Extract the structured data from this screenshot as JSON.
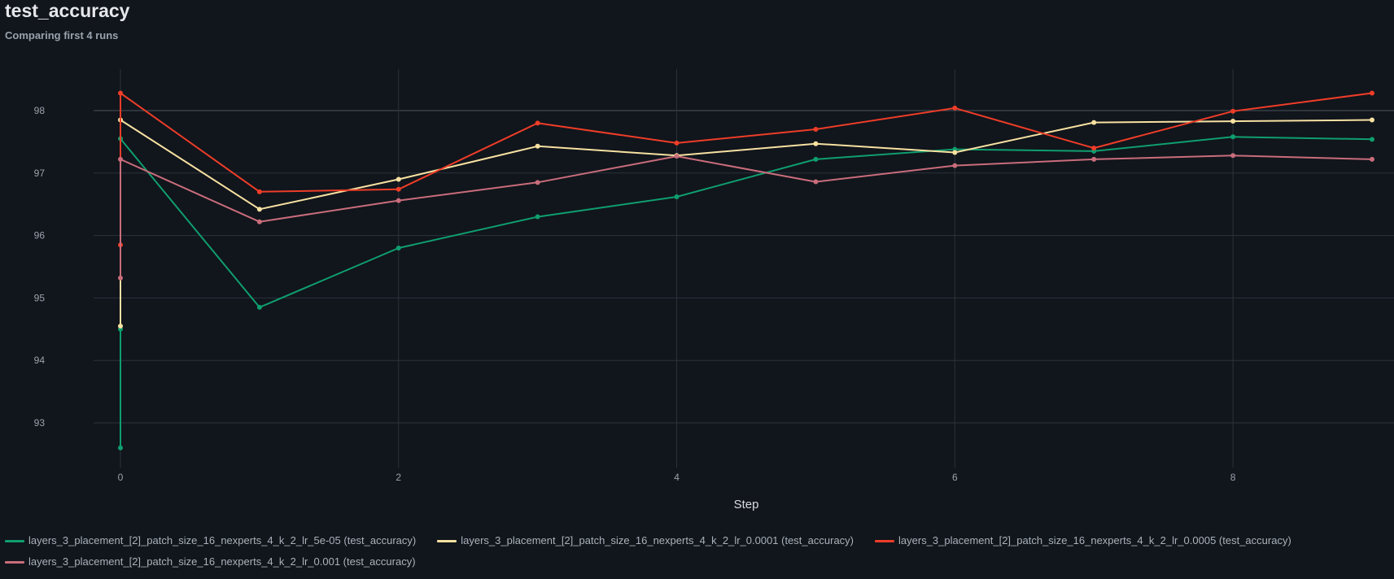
{
  "header": {
    "title": "test_accuracy",
    "subtitle": "Comparing first 4 runs"
  },
  "chart_data": {
    "type": "line",
    "xlabel": "Step",
    "ylabel": "",
    "xlim": [
      -0.3,
      9
    ],
    "ylim": [
      92.3,
      98.65
    ],
    "xticks": [
      0,
      2,
      4,
      6,
      8
    ],
    "yticks": [
      93,
      94,
      95,
      96,
      97,
      98
    ],
    "grid": true,
    "legend_position": "bottom",
    "series": [
      {
        "name": "layers_3_placement_[2]_patch_size_16_nexperts_4_k_2_lr_5e-05 (test_accuracy)",
        "color": "#0f9e6e",
        "x": [
          0,
          0,
          0,
          1,
          2,
          3,
          4,
          5,
          6,
          7,
          8,
          9
        ],
        "y": [
          92.6,
          94.5,
          97.55,
          94.85,
          95.8,
          96.3,
          96.62,
          97.22,
          97.38,
          97.35,
          97.58,
          97.54
        ]
      },
      {
        "name": "layers_3_placement_[2]_patch_size_16_nexperts_4_k_2_lr_0.0001 (test_accuracy)",
        "color": "#f7e1a1",
        "x": [
          0,
          0,
          1,
          2,
          3,
          4,
          5,
          6,
          7,
          8,
          9
        ],
        "y": [
          94.55,
          97.85,
          96.42,
          96.9,
          97.43,
          97.28,
          97.47,
          97.33,
          97.81,
          97.83,
          97.85
        ]
      },
      {
        "name": "layers_3_placement_[2]_patch_size_16_nexperts_4_k_2_lr_0.0005 (test_accuracy)",
        "color": "#ee3d28",
        "x": [
          0,
          0,
          1,
          2,
          3,
          4,
          5,
          6,
          7,
          8,
          9
        ],
        "y": [
          95.85,
          98.28,
          96.7,
          96.74,
          97.8,
          97.48,
          97.7,
          98.04,
          97.4,
          97.99,
          98.28
        ]
      },
      {
        "name": "layers_3_placement_[2]_patch_size_16_nexperts_4_k_2_lr_0.001 (test_accuracy)",
        "color": "#c96d7b",
        "x": [
          0,
          0,
          1,
          2,
          3,
          4,
          5,
          6,
          7,
          8,
          9
        ],
        "y": [
          95.32,
          97.22,
          96.22,
          96.56,
          96.85,
          97.27,
          96.86,
          97.12,
          97.22,
          97.28,
          97.22
        ]
      }
    ]
  }
}
